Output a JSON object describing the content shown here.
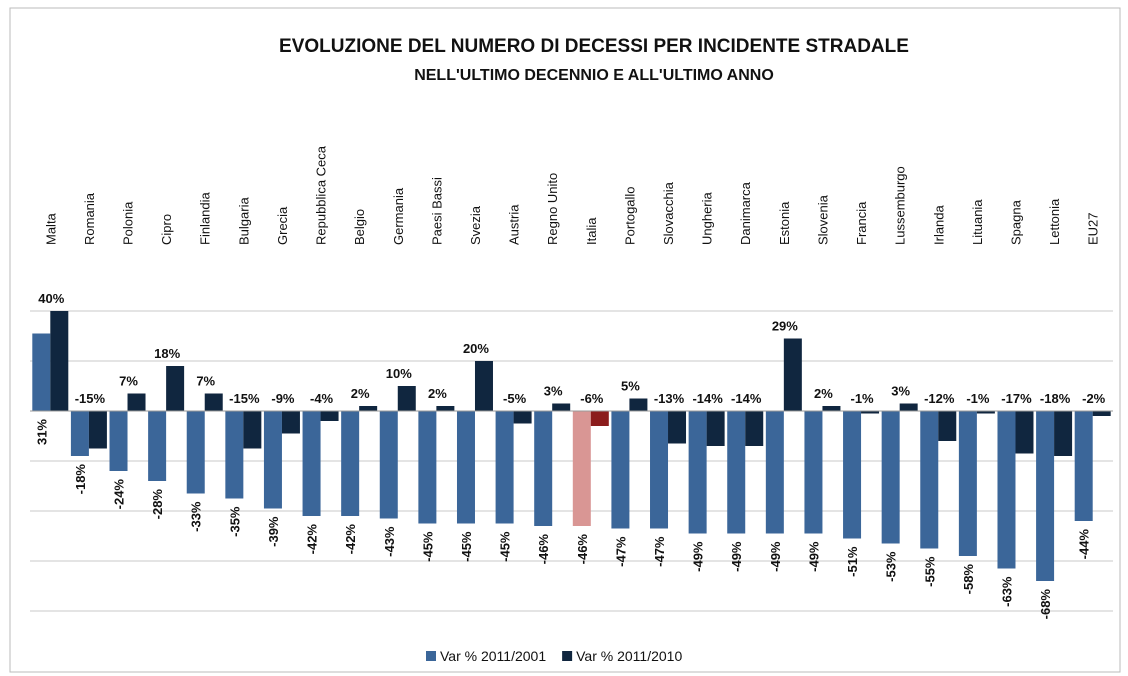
{
  "chart_data": {
    "type": "bar",
    "title": "EVOLUZIONE DEL NUMERO DI DECESSI PER INCIDENTE STRADALE",
    "subtitle": "NELL'ULTIMO DECENNIO  E ALL'ULTIMO ANNO",
    "categories": [
      "Malta",
      "Romania",
      "Polonia",
      "Cipro",
      "Finlandia",
      "Bulgaria",
      "Grecia",
      "Repubblica Ceca",
      "Belgio",
      "Germania",
      "Paesi Bassi",
      "Svezia",
      "Austria",
      "Regno Unito",
      "Italia",
      "Portogallo",
      "Slovacchia",
      "Ungheria",
      "Danimarca",
      "Estonia",
      "Slovenia",
      "Francia",
      "Lussemburgo",
      "Irlanda",
      "Lituania",
      "Spagna",
      "Lettonia",
      "EU27"
    ],
    "series": [
      {
        "name": "Var % 2011/2001",
        "color": "#3b6699",
        "values": [
          31,
          -18,
          -24,
          -28,
          -33,
          -35,
          -39,
          -42,
          -42,
          -43,
          -45,
          -45,
          -45,
          -46,
          -46,
          -47,
          -47,
          -49,
          -49,
          -49,
          -49,
          -51,
          -53,
          -55,
          -58,
          -63,
          -68,
          -44
        ],
        "value_labels": [
          "31%",
          "-18%",
          "-24%",
          "-28%",
          "-33%",
          "-35%",
          "-39%",
          "-42%",
          "-42%",
          "-43%",
          "-45%",
          "-45%",
          "-45%",
          "-46%",
          "-46%",
          "-47%",
          "-47%",
          "-49%",
          "-49%",
          "-49%",
          "-49%",
          "-51%",
          "-53%",
          "-55%",
          "-58%",
          "-63%",
          "-68%",
          "-44%"
        ],
        "colors": [
          "#3b6699",
          "#3b6699",
          "#3b6699",
          "#3b6699",
          "#3b6699",
          "#3b6699",
          "#3b6699",
          "#3b6699",
          "#3b6699",
          "#3b6699",
          "#3b6699",
          "#3b6699",
          "#3b6699",
          "#3b6699",
          "#d99694",
          "#3b6699",
          "#3b6699",
          "#3b6699",
          "#3b6699",
          "#3b6699",
          "#3b6699",
          "#3b6699",
          "#3b6699",
          "#3b6699",
          "#3b6699",
          "#3b6699",
          "#3b6699",
          "#3b6699"
        ]
      },
      {
        "name": "Var % 2011/2010",
        "color": "#10263f",
        "values": [
          40,
          -15,
          7,
          18,
          7,
          -15,
          -9,
          -4,
          2,
          10,
          2,
          20,
          -5,
          3,
          -6,
          5,
          -13,
          -14,
          -14,
          29,
          2,
          -1,
          3,
          -12,
          -1,
          -17,
          -18,
          -2
        ],
        "value_labels": [
          "40%",
          "-15%",
          "7%",
          "18%",
          "7%",
          "-15%",
          "-9%",
          "-4%",
          "2%",
          "10%",
          "2%",
          "20%",
          "-5%",
          "3%",
          "-6%",
          "5%",
          "-13%",
          "-14%",
          "-14%",
          "29%",
          "2%",
          "-1%",
          "3%",
          "-12%",
          "-1%",
          "-17%",
          "-18%",
          "-2%"
        ],
        "colors": [
          "#10263f",
          "#10263f",
          "#10263f",
          "#10263f",
          "#10263f",
          "#10263f",
          "#10263f",
          "#10263f",
          "#10263f",
          "#10263f",
          "#10263f",
          "#10263f",
          "#10263f",
          "#10263f",
          "#8b1c1c",
          "#10263f",
          "#10263f",
          "#10263f",
          "#10263f",
          "#10263f",
          "#10263f",
          "#10263f",
          "#10263f",
          "#10263f",
          "#10263f",
          "#10263f",
          "#10263f",
          "#10263f"
        ]
      }
    ],
    "ylim": [
      -80,
      40
    ],
    "yticks": [
      -80,
      -60,
      -40,
      -20,
      0,
      20,
      40
    ],
    "grid": true,
    "legend": "bottom"
  }
}
